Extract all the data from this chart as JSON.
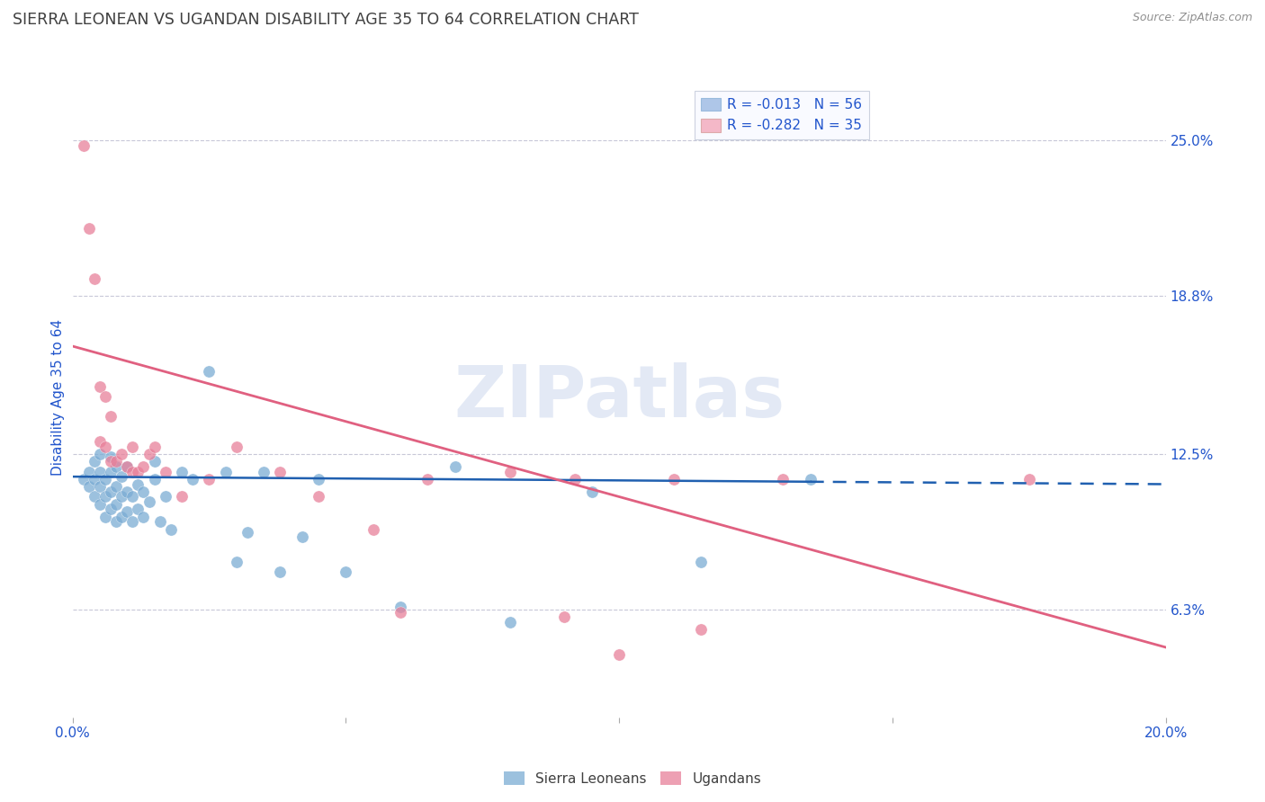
{
  "title": "SIERRA LEONEAN VS UGANDAN DISABILITY AGE 35 TO 64 CORRELATION CHART",
  "source": "Source: ZipAtlas.com",
  "ylabel": "Disability Age 35 to 64",
  "xlim": [
    0.0,
    0.2
  ],
  "ylim": [
    0.02,
    0.275
  ],
  "yticks": [
    0.063,
    0.125,
    0.188,
    0.25
  ],
  "ytick_labels": [
    "6.3%",
    "12.5%",
    "18.8%",
    "25.0%"
  ],
  "xticks": [
    0.0,
    0.05,
    0.1,
    0.15,
    0.2
  ],
  "xtick_labels": [
    "0.0%",
    "",
    "",
    "",
    "20.0%"
  ],
  "legend_entries": [
    {
      "label": "R = -0.013   N = 56",
      "color": "#aec6e8"
    },
    {
      "label": "R = -0.282   N = 35",
      "color": "#f4b8c8"
    }
  ],
  "legend_text_color": "#2255cc",
  "watermark": "ZIPatlas",
  "title_color": "#404040",
  "axis_label_color": "#2255cc",
  "tick_label_color": "#2255cc",
  "grid_color": "#c8c8d8",
  "background_color": "#ffffff",
  "sierra_color": "#7bacd4",
  "ugandan_color": "#e8809a",
  "sierra_line_color": "#2060b0",
  "ugandan_line_color": "#e06080",
  "sierra_line_solid_end": 0.135,
  "sierra_line_y_at_0": 0.116,
  "sierra_line_y_at_02": 0.113,
  "ugandan_line_y_at_0": 0.168,
  "ugandan_line_y_at_02": 0.048,
  "sierra_x": [
    0.002,
    0.003,
    0.003,
    0.004,
    0.004,
    0.004,
    0.005,
    0.005,
    0.005,
    0.005,
    0.006,
    0.006,
    0.006,
    0.007,
    0.007,
    0.007,
    0.007,
    0.008,
    0.008,
    0.008,
    0.008,
    0.009,
    0.009,
    0.009,
    0.01,
    0.01,
    0.01,
    0.011,
    0.011,
    0.012,
    0.012,
    0.013,
    0.013,
    0.014,
    0.015,
    0.015,
    0.016,
    0.017,
    0.018,
    0.02,
    0.022,
    0.025,
    0.028,
    0.03,
    0.032,
    0.035,
    0.038,
    0.042,
    0.045,
    0.05,
    0.06,
    0.07,
    0.08,
    0.095,
    0.115,
    0.135
  ],
  "sierra_y": [
    0.115,
    0.112,
    0.118,
    0.108,
    0.115,
    0.122,
    0.105,
    0.112,
    0.118,
    0.125,
    0.1,
    0.108,
    0.115,
    0.103,
    0.11,
    0.118,
    0.124,
    0.098,
    0.105,
    0.112,
    0.12,
    0.1,
    0.108,
    0.116,
    0.102,
    0.11,
    0.12,
    0.098,
    0.108,
    0.103,
    0.113,
    0.1,
    0.11,
    0.106,
    0.115,
    0.122,
    0.098,
    0.108,
    0.095,
    0.118,
    0.115,
    0.158,
    0.118,
    0.082,
    0.094,
    0.118,
    0.078,
    0.092,
    0.115,
    0.078,
    0.064,
    0.12,
    0.058,
    0.11,
    0.082,
    0.115
  ],
  "ugandan_x": [
    0.002,
    0.003,
    0.004,
    0.005,
    0.005,
    0.006,
    0.006,
    0.007,
    0.007,
    0.008,
    0.009,
    0.01,
    0.011,
    0.011,
    0.012,
    0.013,
    0.014,
    0.015,
    0.017,
    0.02,
    0.025,
    0.03,
    0.038,
    0.045,
    0.055,
    0.065,
    0.09,
    0.11,
    0.115,
    0.13,
    0.175,
    0.08,
    0.092,
    0.1,
    0.06
  ],
  "ugandan_y": [
    0.248,
    0.215,
    0.195,
    0.152,
    0.13,
    0.148,
    0.128,
    0.14,
    0.122,
    0.122,
    0.125,
    0.12,
    0.128,
    0.118,
    0.118,
    0.12,
    0.125,
    0.128,
    0.118,
    0.108,
    0.115,
    0.128,
    0.118,
    0.108,
    0.095,
    0.115,
    0.06,
    0.115,
    0.055,
    0.115,
    0.115,
    0.118,
    0.115,
    0.045,
    0.062
  ]
}
